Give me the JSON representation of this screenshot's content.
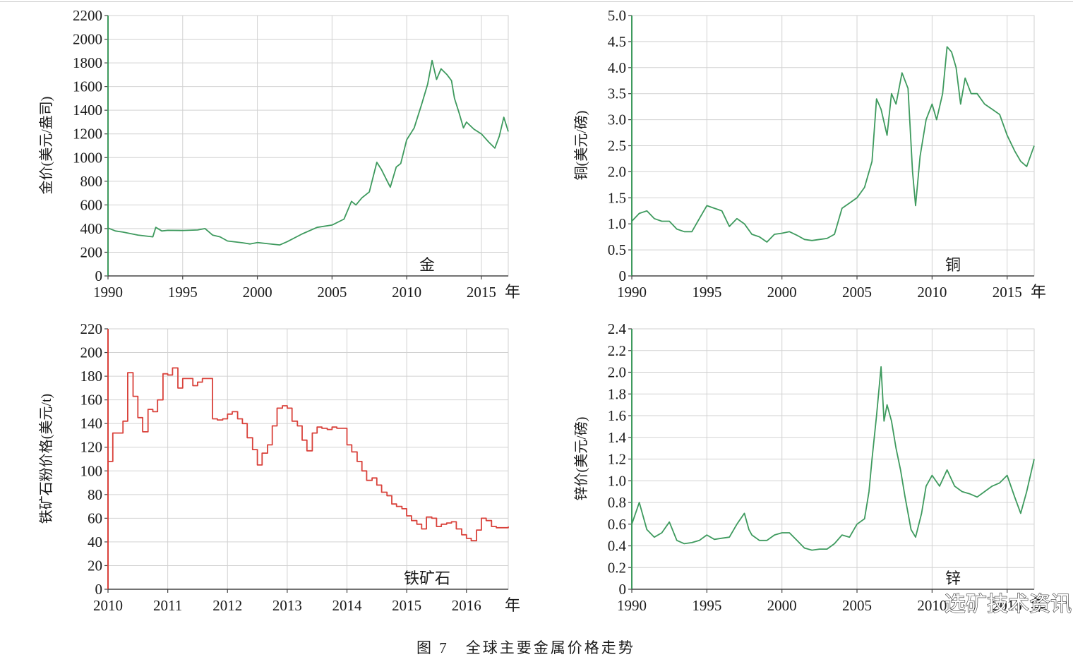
{
  "caption": "图 7　全球主要金属价格走势",
  "watermark": "选矿技术资讯",
  "colors": {
    "green": "#3e9a5e",
    "red": "#d9413a",
    "grid": "#d2d2d2",
    "axis": "#444444"
  },
  "chart_data": [
    {
      "type": "line",
      "name": "gold",
      "label": "金",
      "ylabel": "金价(美元/盎司)",
      "x_unit": "年",
      "xlim": [
        1990,
        2016.8
      ],
      "ylim": [
        0,
        2200
      ],
      "xticks": [
        1990,
        1995,
        2000,
        2005,
        2010,
        2015
      ],
      "yticks": [
        0,
        200,
        400,
        600,
        800,
        1000,
        1200,
        1400,
        1600,
        1800,
        2000,
        2200
      ],
      "grid": true,
      "color": "green",
      "x": [
        1990,
        1990.5,
        1991,
        1992,
        1993,
        1993.2,
        1993.6,
        1994,
        1995,
        1996,
        1996.5,
        1997,
        1997.5,
        1998,
        1999,
        1999.5,
        2000,
        2001,
        2001.5,
        2002,
        2003,
        2004,
        2005,
        2005.8,
        2006.3,
        2006.6,
        2007,
        2007.5,
        2008,
        2008.3,
        2008.7,
        2008.9,
        2009.3,
        2009.6,
        2010,
        2010.5,
        2011,
        2011.4,
        2011.7,
        2012,
        2012.3,
        2012.7,
        2013,
        2013.2,
        2013.5,
        2013.8,
        2014,
        2014.5,
        2015,
        2015.5,
        2015.9,
        2016.2,
        2016.5,
        2016.8
      ],
      "y": [
        405,
        380,
        370,
        345,
        330,
        410,
        380,
        385,
        384,
        388,
        400,
        345,
        330,
        295,
        280,
        270,
        282,
        268,
        262,
        290,
        355,
        410,
        430,
        480,
        630,
        600,
        660,
        710,
        960,
        900,
        800,
        750,
        920,
        950,
        1150,
        1250,
        1450,
        1620,
        1820,
        1660,
        1750,
        1700,
        1650,
        1500,
        1380,
        1250,
        1300,
        1240,
        1200,
        1130,
        1080,
        1180,
        1340,
        1220
      ]
    },
    {
      "type": "line",
      "name": "copper",
      "label": "铜",
      "ylabel": "铜(美元/磅)",
      "x_unit": "年",
      "xlim": [
        1990,
        2016.8
      ],
      "ylim": [
        0,
        5.0
      ],
      "xticks": [
        1990,
        1995,
        2000,
        2005,
        2010,
        2015
      ],
      "yticks": [
        0,
        0.5,
        1.0,
        1.5,
        2.0,
        2.5,
        3.0,
        3.5,
        4.0,
        4.5,
        5.0
      ],
      "ytick_labels": [
        "0",
        "0.5",
        "1.0",
        "1.5",
        "2.0",
        "2.5",
        "3.0",
        "3.5",
        "4.0",
        "4.5",
        "5.0"
      ],
      "grid": true,
      "color": "green",
      "x": [
        1990,
        1990.5,
        1991,
        1991.5,
        1992,
        1992.5,
        1993,
        1993.5,
        1994,
        1994.5,
        1995,
        1995.5,
        1996,
        1996.5,
        1997,
        1997.5,
        1998,
        1998.5,
        1999,
        1999.5,
        2000,
        2000.5,
        2001,
        2001.5,
        2002,
        2002.5,
        2003,
        2003.5,
        2004,
        2004.5,
        2005,
        2005.5,
        2006,
        2006.3,
        2006.6,
        2007,
        2007.3,
        2007.6,
        2008,
        2008.4,
        2008.7,
        2008.9,
        2009.2,
        2009.6,
        2010,
        2010.3,
        2010.7,
        2011,
        2011.3,
        2011.6,
        2011.9,
        2012.2,
        2012.6,
        2013,
        2013.5,
        2014,
        2014.5,
        2015,
        2015.5,
        2015.9,
        2016.3,
        2016.8
      ],
      "y": [
        1.05,
        1.2,
        1.25,
        1.1,
        1.05,
        1.05,
        0.9,
        0.85,
        0.85,
        1.1,
        1.35,
        1.3,
        1.25,
        0.95,
        1.1,
        1.0,
        0.8,
        0.75,
        0.65,
        0.8,
        0.82,
        0.85,
        0.78,
        0.7,
        0.68,
        0.7,
        0.72,
        0.8,
        1.3,
        1.4,
        1.5,
        1.7,
        2.2,
        3.4,
        3.2,
        2.7,
        3.5,
        3.3,
        3.9,
        3.6,
        2.0,
        1.35,
        2.3,
        3.0,
        3.3,
        3.0,
        3.5,
        4.4,
        4.3,
        4.0,
        3.3,
        3.8,
        3.5,
        3.5,
        3.3,
        3.2,
        3.1,
        2.7,
        2.4,
        2.2,
        2.1,
        2.5
      ]
    },
    {
      "type": "line",
      "name": "iron-ore",
      "label": "铁矿石",
      "ylabel": "铁矿石粉价格(美元/t)",
      "x_unit": "年",
      "xlim": [
        2010,
        2016.7
      ],
      "ylim": [
        0,
        220
      ],
      "xticks": [
        2010,
        2011,
        2012,
        2013,
        2014,
        2015,
        2016
      ],
      "yticks": [
        0,
        20,
        40,
        60,
        80,
        100,
        120,
        140,
        160,
        180,
        200,
        220
      ],
      "grid": true,
      "color": "red",
      "x": [
        2010,
        2010.08,
        2010.17,
        2010.25,
        2010.33,
        2010.42,
        2010.5,
        2010.58,
        2010.67,
        2010.75,
        2010.83,
        2010.92,
        2011,
        2011.08,
        2011.17,
        2011.25,
        2011.33,
        2011.42,
        2011.5,
        2011.58,
        2011.67,
        2011.75,
        2011.83,
        2011.92,
        2012,
        2012.08,
        2012.17,
        2012.25,
        2012.33,
        2012.42,
        2012.5,
        2012.58,
        2012.67,
        2012.75,
        2012.83,
        2012.92,
        2013,
        2013.08,
        2013.17,
        2013.25,
        2013.33,
        2013.42,
        2013.5,
        2013.58,
        2013.67,
        2013.75,
        2013.83,
        2013.92,
        2014,
        2014.08,
        2014.17,
        2014.25,
        2014.33,
        2014.42,
        2014.5,
        2014.58,
        2014.67,
        2014.75,
        2014.83,
        2014.92,
        2015,
        2015.08,
        2015.17,
        2015.25,
        2015.33,
        2015.42,
        2015.5,
        2015.58,
        2015.67,
        2015.75,
        2015.83,
        2015.92,
        2016,
        2016.08,
        2016.17,
        2016.25,
        2016.33,
        2016.42,
        2016.5,
        2016.58,
        2016.7
      ],
      "y": [
        108,
        132,
        132,
        142,
        183,
        163,
        145,
        133,
        152,
        150,
        160,
        182,
        181,
        187,
        170,
        178,
        178,
        172,
        175,
        178,
        178,
        144,
        143,
        144,
        148,
        150,
        144,
        140,
        128,
        118,
        105,
        115,
        122,
        138,
        153,
        155,
        153,
        142,
        138,
        126,
        117,
        132,
        137,
        136,
        135,
        137,
        136,
        136,
        122,
        116,
        108,
        100,
        92,
        94,
        88,
        82,
        79,
        72,
        70,
        68,
        62,
        58,
        55,
        51,
        61,
        60,
        53,
        55,
        56,
        57,
        51,
        46,
        43,
        41,
        50,
        60,
        58,
        53,
        52,
        52,
        53
      ]
    },
    {
      "type": "line",
      "name": "zinc",
      "label": "锌",
      "ylabel": "锌价(美元/磅)",
      "x_unit": "年",
      "xlim": [
        1990,
        2016.8
      ],
      "ylim": [
        0,
        2.4
      ],
      "xticks": [
        1990,
        1995,
        2000,
        2005,
        2010,
        2015
      ],
      "yticks": [
        0,
        0.2,
        0.4,
        0.6,
        0.8,
        1.0,
        1.2,
        1.4,
        1.6,
        1.8,
        2.0,
        2.2,
        2.4
      ],
      "ytick_labels": [
        "0",
        "0.2",
        "0.4",
        "0.6",
        "0.8",
        "1.0",
        "1.2",
        "1.4",
        "1.6",
        "1.8",
        "2.0",
        "2.2",
        "2.4"
      ],
      "grid": true,
      "color": "green",
      "x": [
        1990,
        1990.5,
        1991,
        1991.5,
        1992,
        1992.5,
        1993,
        1993.5,
        1994,
        1994.5,
        1995,
        1995.5,
        1996,
        1996.5,
        1997,
        1997.5,
        1997.8,
        1998,
        1998.5,
        1999,
        1999.5,
        2000,
        2000.5,
        2001,
        2001.5,
        2002,
        2002.5,
        2003,
        2003.5,
        2004,
        2004.5,
        2005,
        2005.5,
        2005.8,
        2006,
        2006.3,
        2006.6,
        2006.8,
        2007,
        2007.3,
        2007.6,
        2007.9,
        2008.2,
        2008.6,
        2008.9,
        2009.3,
        2009.6,
        2010,
        2010.5,
        2011,
        2011.5,
        2012,
        2012.5,
        2013,
        2013.5,
        2014,
        2014.5,
        2015,
        2015.5,
        2015.9,
        2016.3,
        2016.8
      ],
      "y": [
        0.6,
        0.8,
        0.55,
        0.48,
        0.52,
        0.62,
        0.45,
        0.42,
        0.43,
        0.45,
        0.5,
        0.46,
        0.47,
        0.48,
        0.6,
        0.7,
        0.55,
        0.5,
        0.45,
        0.45,
        0.5,
        0.52,
        0.52,
        0.45,
        0.38,
        0.36,
        0.37,
        0.37,
        0.42,
        0.5,
        0.48,
        0.6,
        0.65,
        0.9,
        1.2,
        1.6,
        2.05,
        1.55,
        1.7,
        1.55,
        1.3,
        1.1,
        0.85,
        0.55,
        0.48,
        0.7,
        0.95,
        1.05,
        0.95,
        1.1,
        0.95,
        0.9,
        0.88,
        0.85,
        0.9,
        0.95,
        0.98,
        1.05,
        0.85,
        0.7,
        0.9,
        1.2
      ]
    }
  ]
}
